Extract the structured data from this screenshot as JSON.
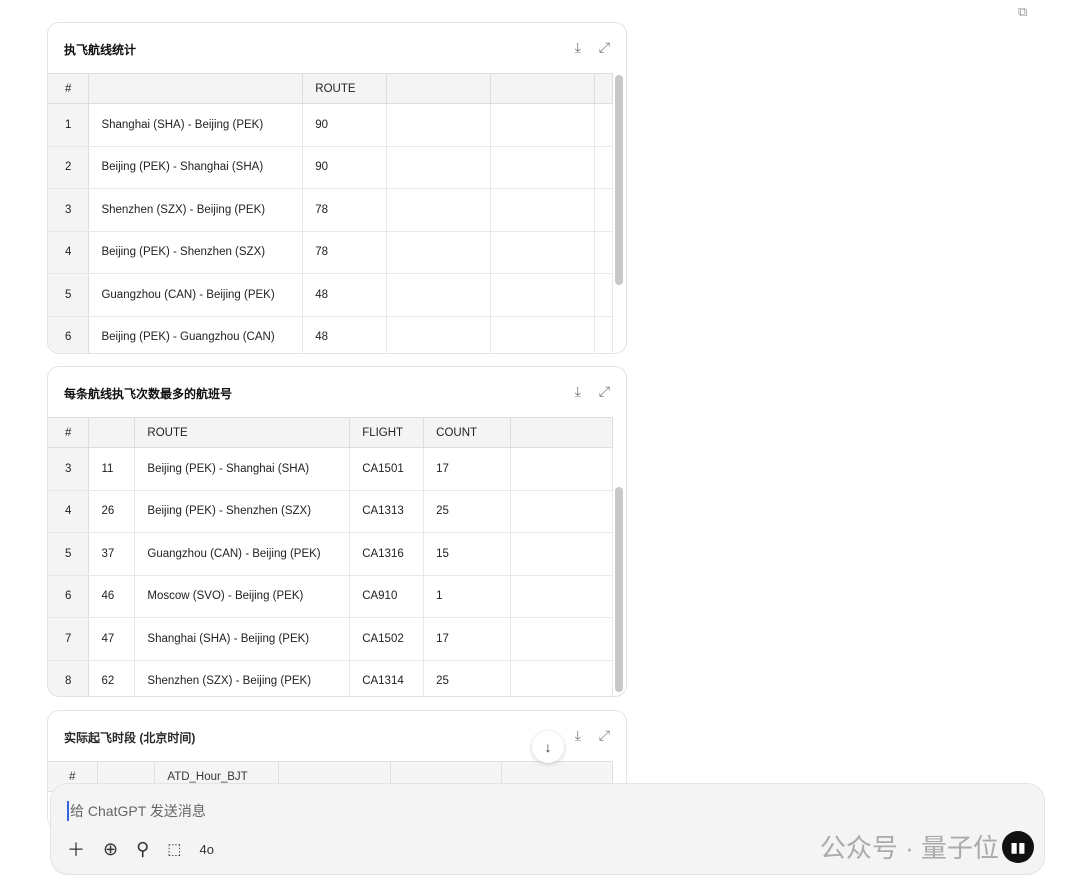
{
  "copy_icon": "copy-icon",
  "card1": {
    "title": "执飞航线统计",
    "headers": [
      "#",
      "",
      "ROUTE",
      "",
      "",
      ""
    ],
    "rows": [
      [
        "1",
        "Shanghai (SHA) - Beijing (PEK)",
        "90"
      ],
      [
        "2",
        "Beijing (PEK) - Shanghai (SHA)",
        "90"
      ],
      [
        "3",
        "Shenzhen (SZX) - Beijing (PEK)",
        "78"
      ],
      [
        "4",
        "Beijing (PEK) - Shenzhen (SZX)",
        "78"
      ],
      [
        "5",
        "Guangzhou (CAN) - Beijing (PEK)",
        "48"
      ],
      [
        "6",
        "Beijing (PEK) - Guangzhou (CAN)",
        "48"
      ]
    ]
  },
  "card2": {
    "title": "每条航线执飞次数最多的航班号",
    "headers": [
      "#",
      "",
      "ROUTE",
      "FLIGHT",
      "COUNT",
      ""
    ],
    "rows": [
      [
        "3",
        "11",
        "Beijing (PEK) - Shanghai (SHA)",
        "CA1501",
        "17"
      ],
      [
        "4",
        "26",
        "Beijing (PEK) - Shenzhen (SZX)",
        "CA1313",
        "25"
      ],
      [
        "5",
        "37",
        "Guangzhou (CAN) - Beijing (PEK)",
        "CA1316",
        "15"
      ],
      [
        "6",
        "46",
        "Moscow (SVO) - Beijing (PEK)",
        "CA910",
        "1"
      ],
      [
        "7",
        "47",
        "Shanghai (SHA) - Beijing (PEK)",
        "CA1502",
        "17"
      ],
      [
        "8",
        "62",
        "Shenzhen (SZX) - Beijing (PEK)",
        "CA1314",
        "25"
      ]
    ]
  },
  "card3": {
    "title": "实际起飞时段 (北京时间)",
    "headers": [
      "#",
      "",
      "ATD_Hour_BJT",
      "",
      "",
      ""
    ]
  },
  "composer": {
    "placeholder": "给 ChatGPT 发送消息",
    "model": "4o"
  },
  "watermark": "公众号 · 量子位"
}
